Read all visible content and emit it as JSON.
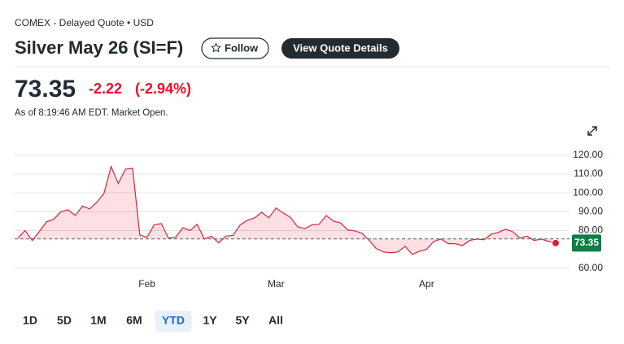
{
  "header": {
    "exchange": "COMEX - Delayed Quote • USD",
    "title": "Silver May 26 (SI=F)",
    "follow": "Follow",
    "details": "View Quote Details"
  },
  "quote": {
    "price": "73.35",
    "change": "-2.22",
    "change_pct": "(-2.94%)",
    "as_of": "As of 8:19:46 AM EDT. Market Open."
  },
  "chart_data": {
    "type": "line",
    "color": "#d5253d",
    "fill": "rgba(235,15,41,0.13)",
    "tag_color": "#0f7d45",
    "categories": [
      null,
      null,
      null,
      null,
      null,
      null,
      null,
      null,
      null,
      null,
      null,
      null,
      null,
      null,
      null,
      null,
      null,
      null,
      "Feb",
      null,
      null,
      null,
      null,
      null,
      null,
      null,
      null,
      null,
      null,
      null,
      null,
      null,
      null,
      null,
      null,
      null,
      "Mar",
      null,
      null,
      null,
      null,
      null,
      null,
      null,
      null,
      null,
      null,
      null,
      null,
      null,
      null,
      null,
      null,
      null,
      null,
      null,
      null,
      "Apr",
      null,
      null,
      null,
      null,
      null,
      null,
      null,
      null,
      null,
      null,
      null,
      null,
      null,
      null,
      null,
      null,
      null,
      null
    ],
    "values": [
      76,
      80,
      74.7,
      79.5,
      84.6,
      86,
      90,
      91,
      88,
      93,
      91.5,
      95,
      99.7,
      114,
      105,
      112.6,
      113,
      77.7,
      76.4,
      83,
      83.7,
      76,
      76.4,
      81.5,
      80,
      83.3,
      75.5,
      77,
      73.4,
      77,
      77.4,
      83,
      85.4,
      86.7,
      89.7,
      86.7,
      92,
      89.3,
      87,
      82,
      81,
      83,
      83.3,
      88,
      85,
      84,
      80.3,
      79.8,
      78.5,
      74.7,
      70.3,
      68.6,
      68.2,
      68.6,
      71.6,
      67.3,
      69,
      70,
      74.2,
      75.5,
      73,
      73,
      72,
      74.7,
      75.5,
      75.1,
      78,
      79,
      80.7,
      79.4,
      76,
      77,
      74.7,
      75.5,
      74.2,
      73.35
    ],
    "previous_close": 75.57,
    "ylim": [
      56,
      126
    ],
    "yticks": [
      {
        "value": 60,
        "label": "60.00"
      },
      {
        "value": 80,
        "label": "80.00"
      },
      {
        "value": 90,
        "label": "90.00"
      },
      {
        "value": 100,
        "label": "100.00"
      },
      {
        "value": 110,
        "label": "110.00"
      },
      {
        "value": 120,
        "label": "120.00"
      }
    ],
    "grid": true
  },
  "ranges": [
    "1D",
    "5D",
    "1M",
    "6M",
    "YTD",
    "1Y",
    "5Y",
    "All"
  ],
  "selected_range": "YTD"
}
